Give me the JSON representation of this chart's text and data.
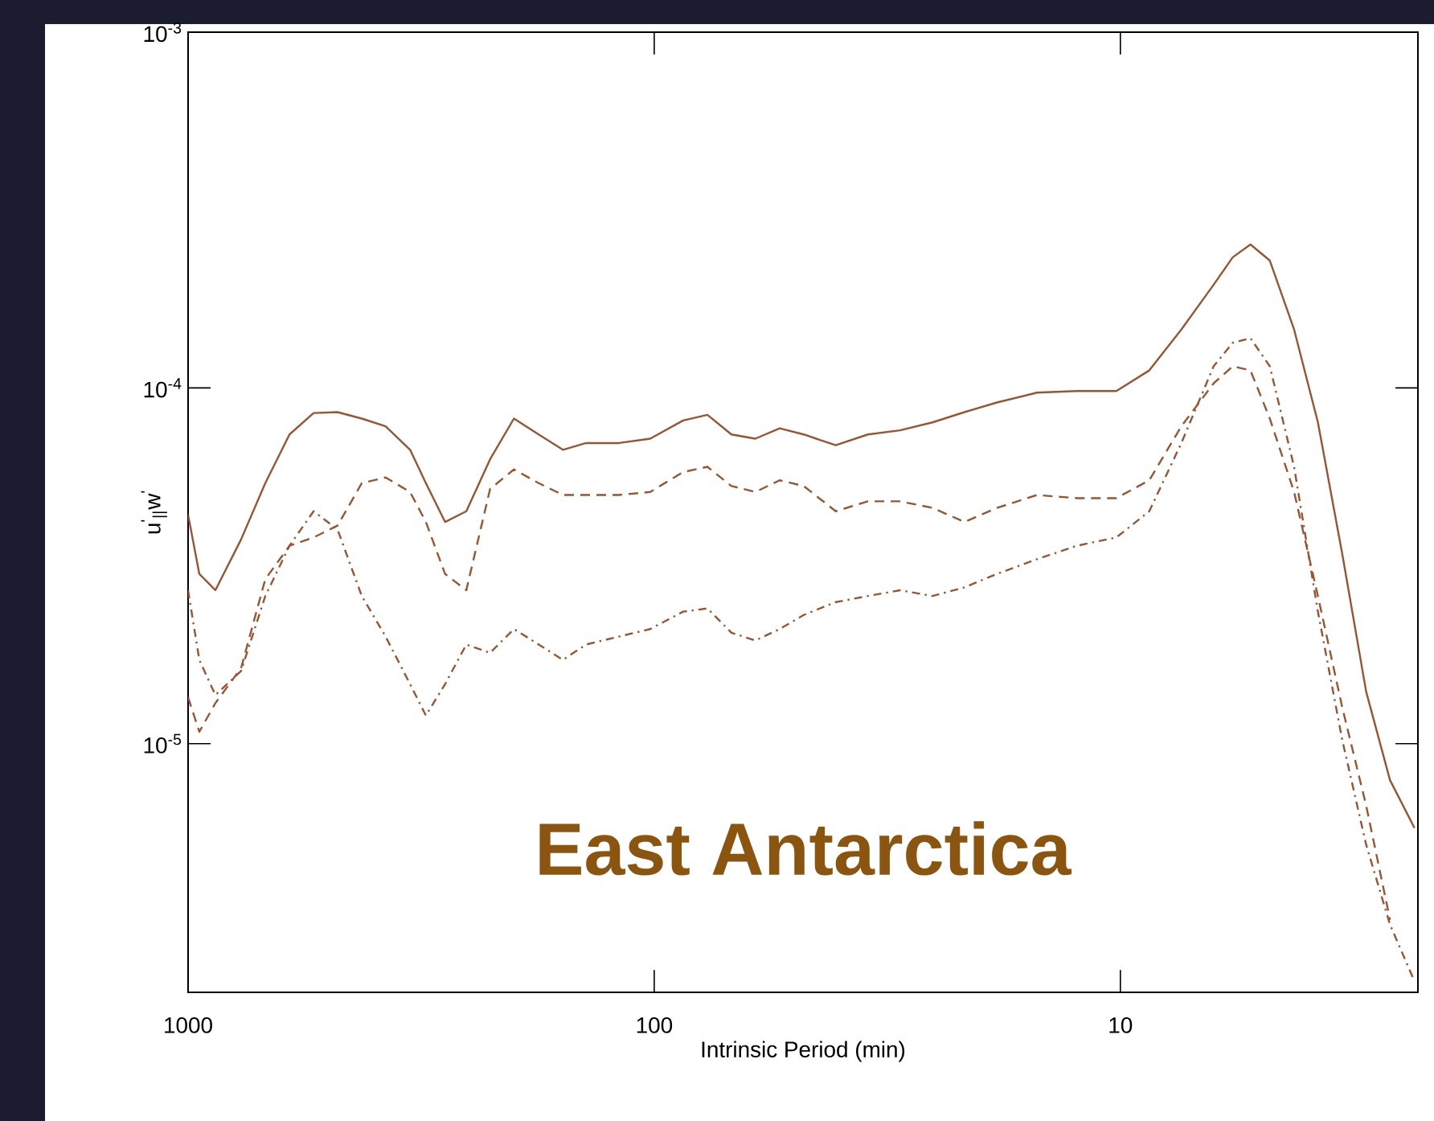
{
  "chart_data": {
    "type": "line",
    "xlabel": "Intrinsic Period (min)",
    "ylabel": "u$^{'}$$_{||}$w$^{'}$",
    "log": "xy",
    "xlim": [
      1000,
      2.3
    ],
    "ylim": [
      2e-06,
      0.001
    ],
    "xticks": [
      1000,
      100,
      10
    ],
    "yticks": [
      {
        "value": 0.001,
        "label": "10$^{-3}$"
      },
      {
        "value": 0.0001,
        "label": "10$^{-4}$"
      },
      {
        "value": 1e-05,
        "label": "10$^{-5}$"
      }
    ],
    "x": [
      1000,
      946,
      874,
      770,
      683,
      606,
      538,
      478,
      424,
      377,
      334,
      309,
      281,
      253,
      225,
      200,
      177,
      157,
      140,
      119,
      102,
      86.7,
      76.9,
      68.3,
      60.7,
      53.8,
      47.8,
      40.8,
      34.8,
      29.7,
      25.3,
      21.6,
      18.4,
      15.1,
      12.4,
      10.2,
      8.67,
      7.4,
      6.31,
      5.74,
      5.26,
      4.78,
      4.24,
      3.77,
      3.34,
      2.97,
      2.64,
      2.34
    ],
    "series": [
      {
        "color": "#9a5530",
        "line_style": "solid",
        "values": [
          4.4e-05,
          3e-05,
          2.7e-05,
          3.75e-05,
          5.4e-05,
          7.4e-05,
          8.5e-05,
          8.55e-05,
          8.2e-05,
          7.8e-05,
          6.7e-05,
          5.4e-05,
          4.2e-05,
          4.5e-05,
          6.3e-05,
          8.2e-05,
          7.4e-05,
          6.7e-05,
          7e-05,
          7e-05,
          7.2e-05,
          8.1e-05,
          8.4e-05,
          7.4e-05,
          7.2e-05,
          7.7e-05,
          7.4e-05,
          6.9e-05,
          7.4e-05,
          7.6e-05,
          8e-05,
          8.55e-05,
          9.1e-05,
          9.7e-05,
          9.8e-05,
          9.8e-05,
          0.000112,
          0.000146,
          0.000195,
          0.000233,
          0.000253,
          0.000228,
          0.000146,
          8e-05,
          3.4e-05,
          1.4e-05,
          7.9e-06,
          5.8e-06
        ]
      },
      {
        "color": "#9a5530",
        "line_style": "dashed",
        "values": [
          1.35e-05,
          1.08e-05,
          1.3e-05,
          1.63e-05,
          2.9e-05,
          3.6e-05,
          3.8e-05,
          4.1e-05,
          5.4e-05,
          5.6e-05,
          5.1e-05,
          4.2e-05,
          3e-05,
          2.7e-05,
          5.2e-05,
          5.9e-05,
          5.4e-05,
          5e-05,
          5e-05,
          5e-05,
          5.1e-05,
          5.8e-05,
          6e-05,
          5.3e-05,
          5.1e-05,
          5.5e-05,
          5.3e-05,
          4.5e-05,
          4.8e-05,
          4.8e-05,
          4.6e-05,
          4.2e-05,
          4.6e-05,
          5e-05,
          4.9e-05,
          4.9e-05,
          5.5e-05,
          7.8e-05,
          0.000103,
          0.000115,
          0.000112,
          8.2e-05,
          5.1e-05,
          2.6e-05,
          1.26e-05,
          6.7e-06,
          3.2e-06,
          null
        ]
      },
      {
        "color": "#9a5530",
        "line_style": "dashdot",
        "values": [
          2.7e-05,
          1.72e-05,
          1.37e-05,
          1.6e-05,
          2.6e-05,
          3.6e-05,
          4.5e-05,
          4e-05,
          2.6e-05,
          2e-05,
          1.47e-05,
          1.2e-05,
          1.47e-05,
          1.9e-05,
          1.8e-05,
          2.1e-05,
          1.9e-05,
          1.72e-05,
          1.9e-05,
          2e-05,
          2.1e-05,
          2.35e-05,
          2.4e-05,
          2.05e-05,
          1.95e-05,
          2.1e-05,
          2.3e-05,
          2.5e-05,
          2.6e-05,
          2.7e-05,
          2.6e-05,
          2.75e-05,
          3e-05,
          3.3e-05,
          3.6e-05,
          3.8e-05,
          4.5e-05,
          7e-05,
          0.000115,
          0.000134,
          0.000138,
          0.000115,
          6e-05,
          2.35e-05,
          1.02e-05,
          5.2e-06,
          3.1e-06,
          2.15e-06
        ]
      }
    ],
    "annotations": [
      "East Antarctica"
    ]
  }
}
